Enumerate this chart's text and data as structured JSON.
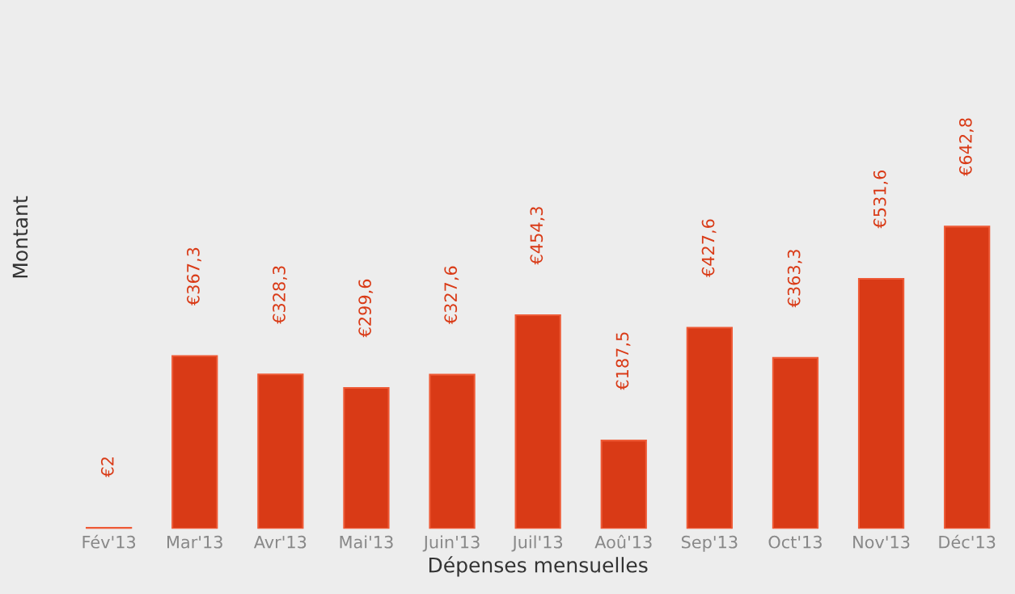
{
  "chart_data": {
    "type": "bar",
    "xlabel": "Dépenses mensuelles",
    "ylabel": "Montant",
    "categories": [
      "Fév'13",
      "Mar'13",
      "Avr'13",
      "Mai'13",
      "Juin'13",
      "Juil'13",
      "Aoû'13",
      "Sep'13",
      "Oct'13",
      "Nov'13",
      "Déc'13"
    ],
    "values": [
      2,
      367.3,
      328.3,
      299.6,
      327.6,
      454.3,
      187.5,
      427.6,
      363.3,
      531.6,
      642.8
    ],
    "value_labels": [
      "€2",
      "€367,3",
      "€328,3",
      "€299,6",
      "€327,6",
      "€454,3",
      "€187,5",
      "€427,6",
      "€363,3",
      "€531,6",
      "€642,8"
    ],
    "color": "#d93a16",
    "grid": false,
    "legend": false
  }
}
